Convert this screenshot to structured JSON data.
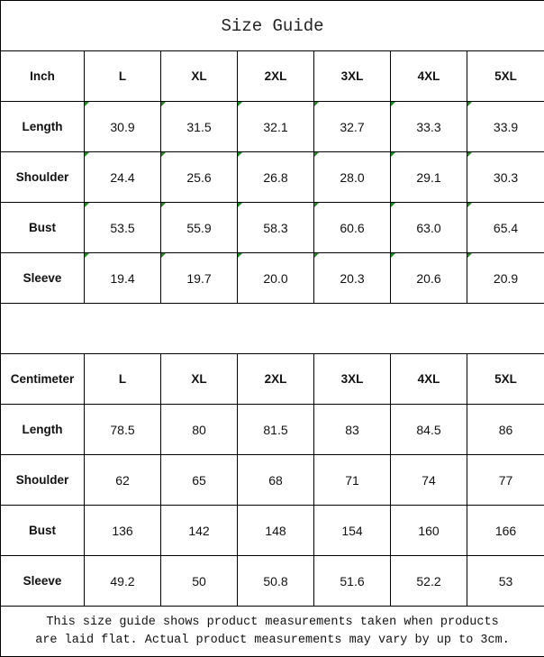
{
  "title": "Size Guide",
  "inch": {
    "header": [
      "Inch",
      "L",
      "XL",
      "2XL",
      "3XL",
      "4XL",
      "5XL"
    ],
    "rows": [
      {
        "label": "Length",
        "values": [
          "30.9",
          "31.5",
          "32.1",
          "32.7",
          "33.3",
          "33.9"
        ]
      },
      {
        "label": "Shoulder",
        "values": [
          "24.4",
          "25.6",
          "26.8",
          "28.0",
          "29.1",
          "30.3"
        ]
      },
      {
        "label": "Bust",
        "values": [
          "53.5",
          "55.9",
          "58.3",
          "60.6",
          "63.0",
          "65.4"
        ]
      },
      {
        "label": "Sleeve",
        "values": [
          "19.4",
          "19.7",
          "20.0",
          "20.3",
          "20.6",
          "20.9"
        ]
      }
    ]
  },
  "centimeter": {
    "header": [
      "Centimeter",
      "L",
      "XL",
      "2XL",
      "3XL",
      "4XL",
      "5XL"
    ],
    "rows": [
      {
        "label": "Length",
        "values": [
          "78.5",
          "80",
          "81.5",
          "83",
          "84.5",
          "86"
        ]
      },
      {
        "label": "Shoulder",
        "values": [
          "62",
          "65",
          "68",
          "71",
          "74",
          "77"
        ]
      },
      {
        "label": "Bust",
        "values": [
          "136",
          "142",
          "148",
          "154",
          "160",
          "166"
        ]
      },
      {
        "label": "Sleeve",
        "values": [
          "49.2",
          "50",
          "50.8",
          "51.6",
          "52.2",
          "53"
        ]
      }
    ]
  },
  "note_line1": "This size guide shows product measurements taken when products",
  "note_line2": "are laid flat. Actual product measurements may vary by up to 3cm.",
  "colors": {
    "error_indicator": "#1a8a1a",
    "border": "#000000"
  }
}
